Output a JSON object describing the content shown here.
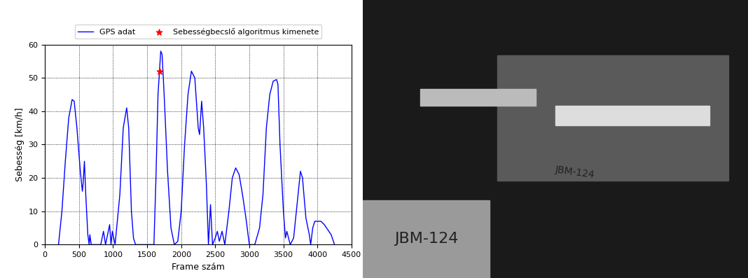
{
  "chart_data": {
    "type": "line",
    "xlabel": "Frame szám",
    "ylabel": "Sebesség [km/h]",
    "xlim": [
      0,
      4500
    ],
    "xticks": [
      0,
      500,
      1000,
      1500,
      2000,
      2500,
      3000,
      3500,
      4000,
      4500
    ],
    "ylim": [
      0,
      60
    ],
    "yticks": [
      0,
      10,
      20,
      30,
      40,
      50,
      60
    ],
    "grid": true,
    "legend": "upper center",
    "series": [
      {
        "name": "GPS adat",
        "type": "line",
        "color": "#0000ff",
        "line_style": "solid",
        "x": [
          200,
          250,
          300,
          350,
          400,
          430,
          470,
          520,
          550,
          560,
          580,
          600,
          630,
          650,
          660,
          680,
          820,
          860,
          890,
          950,
          970,
          990,
          1010,
          1030,
          1100,
          1150,
          1200,
          1230,
          1270,
          1300,
          1330,
          1600,
          1630,
          1660,
          1700,
          1720,
          1750,
          1800,
          1850,
          1900,
          1950,
          2000,
          2050,
          2100,
          2150,
          2200,
          2250,
          2270,
          2300,
          2330,
          2370,
          2400,
          2430,
          2460,
          2500,
          2530,
          2560,
          2600,
          2640,
          2700,
          2750,
          2800,
          2850,
          2900,
          2950,
          3000,
          3080,
          3150,
          3200,
          3250,
          3300,
          3350,
          3400,
          3420,
          3450,
          3500,
          3530,
          3550,
          3600,
          3650,
          3700,
          3750,
          3780,
          3830,
          3880,
          3900,
          3930,
          3960,
          4050,
          4100,
          4200,
          4250
        ],
        "values": [
          0,
          10,
          25,
          38,
          43.5,
          43,
          35,
          22,
          16,
          18,
          25,
          15,
          3,
          0,
          3,
          0,
          0,
          4,
          0,
          6,
          0,
          4,
          2,
          0,
          15,
          35,
          41,
          35,
          10,
          2,
          0,
          0,
          20,
          45,
          58,
          57,
          45,
          22,
          5,
          0,
          1,
          10,
          30,
          45,
          52,
          50,
          35,
          33,
          43,
          35,
          18,
          0,
          12,
          0,
          2,
          4,
          1,
          4,
          0,
          10,
          20,
          23,
          21,
          15,
          8,
          0,
          0,
          5,
          15,
          35,
          45,
          49,
          49.5,
          48,
          30,
          10,
          2,
          4,
          0,
          2,
          12,
          22,
          20,
          8,
          3,
          0,
          5,
          7,
          7,
          6,
          3,
          0
        ]
      },
      {
        "name": "Sebességbecslő algoritmus kimenete",
        "type": "scatter",
        "color": "#ff0000",
        "marker": "*",
        "x": [
          1680
        ],
        "values": [
          52
        ]
      }
    ]
  },
  "photo": {
    "plate_text": "JBM-124"
  }
}
